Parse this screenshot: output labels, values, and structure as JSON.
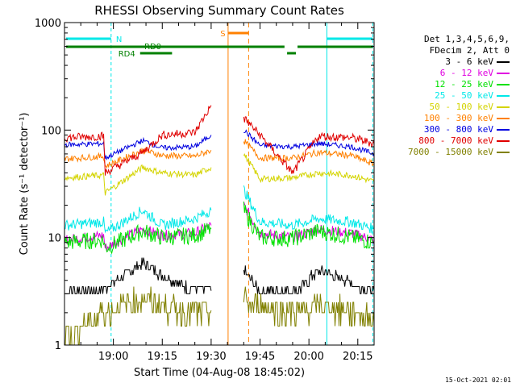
{
  "chart_data": {
    "type": "line",
    "title": "RHESSI Observing Summary Count Rates",
    "xlabel": "Start Time (04-Aug-08 18:45:02)",
    "ylabel": "Count Rate (s⁻¹ detector⁻¹)",
    "y_scale": "log",
    "ylim": [
      1,
      1000
    ],
    "xlim_minutes": [
      0,
      95
    ],
    "y_ticks": [
      "1",
      "10",
      "100",
      "1000"
    ],
    "x_ticks": [
      {
        "label": "19:00",
        "t": 15
      },
      {
        "label": "19:15",
        "t": 30
      },
      {
        "label": "19:30",
        "t": 45
      },
      {
        "label": "19:45",
        "t": 60
      },
      {
        "label": "20:00",
        "t": 75
      },
      {
        "label": "20:15",
        "t": 90
      }
    ],
    "legend_header": [
      "Det 1,3,4,5,6,9,",
      "FDecim 2, Att 0"
    ],
    "series": [
      {
        "name": "3 - 6 keV",
        "color": "#000000",
        "x": [
          0,
          12,
          24,
          30,
          38,
          45,
          47.5,
          55,
          60,
          72,
          78,
          90,
          95
        ],
        "y": [
          3.2,
          3.3,
          5.8,
          4.5,
          3.4,
          3.2,
          null,
          5,
          3.2,
          3.3,
          5,
          3.6,
          3.2
        ]
      },
      {
        "name": "6 - 12 keV",
        "color": "#e000e0",
        "x": [
          0,
          12,
          12.5,
          24,
          30,
          40,
          45,
          47.5,
          55,
          60,
          70,
          78,
          88,
          95
        ],
        "y": [
          9.5,
          10.5,
          8,
          12,
          10.5,
          11,
          13,
          null,
          20,
          11,
          10,
          12,
          11,
          9.5
        ]
      },
      {
        "name": "12 - 25 keV",
        "color": "#00e000",
        "x": [
          0,
          12,
          12.5,
          24,
          30,
          40,
          45,
          47.5,
          55,
          60,
          70,
          78,
          88,
          95
        ],
        "y": [
          9,
          9.5,
          8,
          11.5,
          10,
          10.5,
          12,
          null,
          18,
          10,
          9.8,
          11.5,
          10,
          9
        ]
      },
      {
        "name": "25 - 50 keV",
        "color": "#00e8e8",
        "x": [
          0,
          12,
          12.5,
          24,
          30,
          40,
          45,
          47.5,
          55,
          60,
          70,
          78,
          88,
          95
        ],
        "y": [
          13,
          14,
          11,
          18,
          13,
          15,
          18,
          null,
          28,
          14,
          13,
          15,
          14,
          12
        ]
      },
      {
        "name": "50 - 100 keV",
        "color": "#d4d400",
        "x": [
          0,
          12,
          12.5,
          24,
          30,
          40,
          45,
          47.5,
          55,
          60,
          70,
          78,
          88,
          95
        ],
        "y": [
          36,
          38,
          26,
          45,
          40,
          38,
          45,
          null,
          60,
          35,
          36,
          40,
          38,
          33
        ]
      },
      {
        "name": "100 - 300 keV",
        "color": "#ff8000",
        "x": [
          0,
          12,
          12.5,
          24,
          30,
          40,
          45,
          47.5,
          55,
          60,
          70,
          78,
          88,
          95
        ],
        "y": [
          54,
          57,
          46,
          65,
          58,
          57,
          65,
          null,
          80,
          55,
          55,
          62,
          58,
          48
        ]
      },
      {
        "name": "300 - 800 keV",
        "color": "#0000e0",
        "x": [
          0,
          12,
          12.5,
          24,
          30,
          40,
          45,
          47.5,
          55,
          60,
          70,
          78,
          88,
          95
        ],
        "y": [
          73,
          75,
          55,
          80,
          68,
          70,
          90,
          null,
          100,
          72,
          70,
          75,
          70,
          60
        ]
      },
      {
        "name": "800 - 7000 keV",
        "color": "#e00000",
        "x": [
          0,
          12,
          12.5,
          24,
          30,
          40,
          45,
          47.5,
          55,
          60,
          70,
          78,
          88,
          95
        ],
        "y": [
          85,
          88,
          40,
          62,
          90,
          95,
          170,
          null,
          130,
          90,
          40,
          88,
          85,
          75
        ]
      },
      {
        "name": "7000 - 15000 keV",
        "color": "#808000",
        "x": [
          0,
          12,
          24,
          30,
          38,
          45,
          47.5,
          55,
          60,
          72,
          78,
          90,
          95
        ],
        "y": [
          1.2,
          2,
          2.7,
          2.3,
          2,
          2.1,
          null,
          2.6,
          2.3,
          2,
          2.3,
          2,
          1.6
        ]
      }
    ],
    "flags": [
      {
        "label": "N",
        "color": "#00e8e8"
      },
      {
        "label": "RD0",
        "color": "#008000"
      },
      {
        "label": "RD4",
        "color": "#008000"
      },
      {
        "label": "S",
        "color": "#ff8000"
      }
    ]
  },
  "footer": {
    "timestamp": "15-Oct-2021 02:01"
  }
}
